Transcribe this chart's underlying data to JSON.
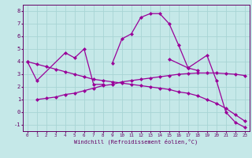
{
  "xlabel": "Windchill (Refroidissement éolien,°C)",
  "background_color": "#c5e8e8",
  "grid_color": "#a8d4d4",
  "line_color": "#990099",
  "xlim": [
    -0.5,
    23.5
  ],
  "ylim": [
    -1.5,
    8.5
  ],
  "yticks": [
    -1,
    0,
    1,
    2,
    3,
    4,
    5,
    6,
    7,
    8
  ],
  "xticks": [
    0,
    1,
    2,
    3,
    4,
    5,
    6,
    7,
    8,
    9,
    10,
    11,
    12,
    13,
    14,
    15,
    16,
    17,
    18,
    19,
    20,
    21,
    22,
    23
  ],
  "line1_x": [
    0,
    1,
    4,
    5,
    6,
    7,
    8
  ],
  "line1_y": [
    4.0,
    2.5,
    4.7,
    4.3,
    5.0,
    2.2,
    2.2
  ],
  "line2_x": [
    9,
    10,
    11,
    12,
    13,
    14,
    15,
    16,
    17,
    18
  ],
  "line2_y": [
    3.9,
    5.8,
    6.2,
    7.5,
    7.8,
    7.8,
    7.0,
    5.3,
    3.5,
    3.3
  ],
  "line3_x": [
    1,
    2,
    3,
    4,
    5,
    6,
    7,
    8,
    9,
    10,
    11,
    12,
    13,
    14,
    15,
    16,
    17,
    18,
    19,
    20,
    21,
    22,
    23
  ],
  "line3_y": [
    1.0,
    1.1,
    1.2,
    1.4,
    1.5,
    1.7,
    1.9,
    2.1,
    2.2,
    2.4,
    2.5,
    2.6,
    2.7,
    2.8,
    2.9,
    3.0,
    3.05,
    3.1,
    3.1,
    3.1,
    3.05,
    3.0,
    2.9
  ],
  "line4_x": [
    0,
    1,
    2,
    3,
    4,
    5,
    6,
    7,
    8,
    9,
    10,
    11,
    12,
    13,
    14,
    15,
    16,
    17,
    18,
    19,
    20,
    21,
    22,
    23
  ],
  "line4_y": [
    4.0,
    3.8,
    3.6,
    3.4,
    3.2,
    3.0,
    2.8,
    2.6,
    2.5,
    2.4,
    2.3,
    2.2,
    2.1,
    2.0,
    1.9,
    1.8,
    1.6,
    1.5,
    1.3,
    1.0,
    0.7,
    0.3,
    -0.2,
    -0.7
  ],
  "line5_x": [
    15,
    17,
    19,
    20,
    21,
    22,
    23
  ],
  "line5_y": [
    4.2,
    3.5,
    4.5,
    2.5,
    0.0,
    -0.8,
    -1.2
  ]
}
